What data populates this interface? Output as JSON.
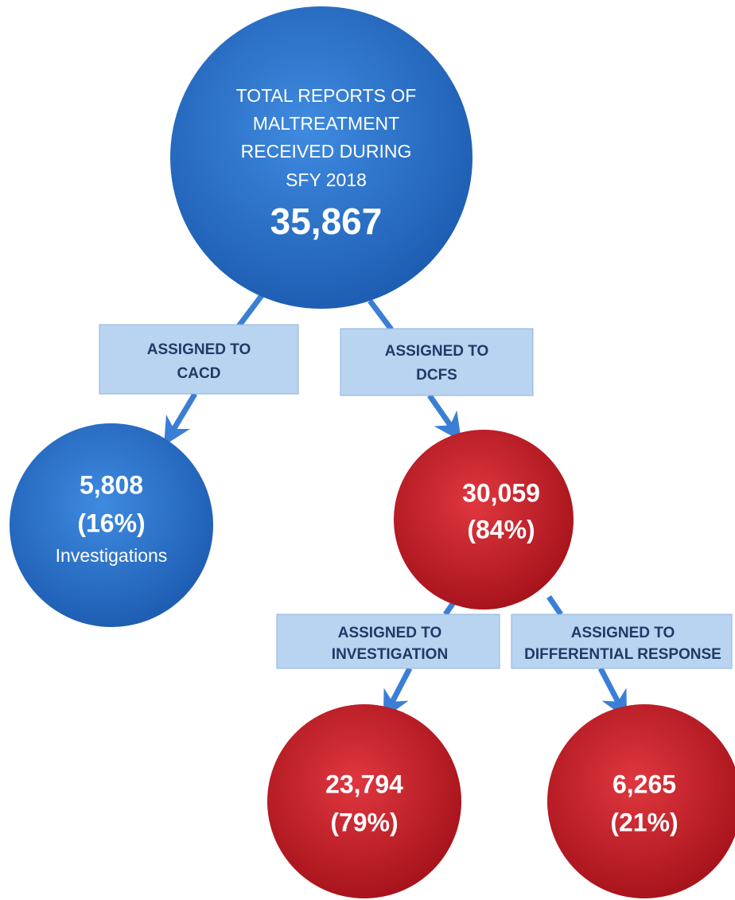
{
  "nodes": [
    {
      "lines": [
        "TOTAL REPORTS OF",
        "MALTREATMENT",
        "RECEIVED DURING",
        "SFY 2018"
      ],
      "count": "35,867"
    },
    {
      "count": "5,808",
      "percent": "(16%)",
      "sublabel": "Investigations"
    },
    {
      "count": "30,059",
      "percent": "(84%)"
    },
    {
      "count": "23,794",
      "percent": "(79%)"
    },
    {
      "count": "6,265",
      "percent": "(21%)"
    }
  ],
  "edges": [
    {
      "lines": [
        "ASSIGNED TO",
        "CACD"
      ]
    },
    {
      "lines": [
        "ASSIGNED TO",
        "DCFS"
      ]
    },
    {
      "lines": [
        "ASSIGNED TO",
        "INVESTIGATION"
      ]
    },
    {
      "lines": [
        "ASSIGNED TO",
        "DIFFERENTIAL RESPONSE"
      ]
    }
  ]
}
